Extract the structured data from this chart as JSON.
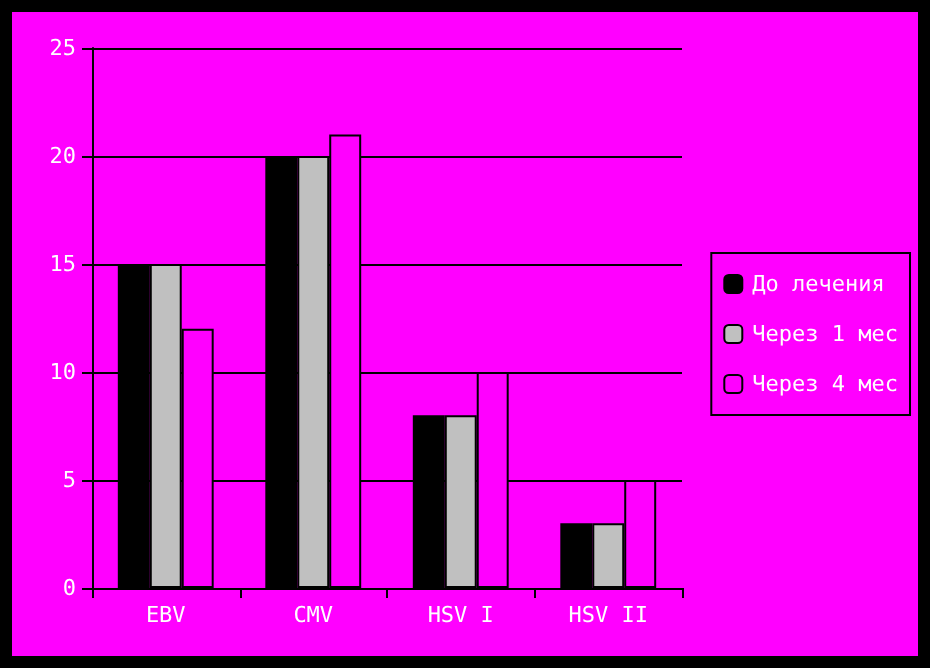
{
  "chart_data": {
    "type": "bar",
    "categories": [
      "EBV",
      "CMV",
      "HSV I",
      "HSV II"
    ],
    "series": [
      {
        "name": "До лечения",
        "color": "#000000",
        "values": [
          15,
          20,
          8,
          3
        ]
      },
      {
        "name": "Через 1 мес",
        "color": "#c0c0c0",
        "values": [
          15,
          20,
          8,
          3
        ]
      },
      {
        "name": "Через 4 мес",
        "color": "#ff00ff",
        "values": [
          12,
          21,
          10,
          5
        ]
      }
    ],
    "ylim": [
      0,
      25
    ],
    "yticks": [
      0,
      5,
      10,
      15,
      20,
      25
    ],
    "grid": "y",
    "legend": "right"
  }
}
